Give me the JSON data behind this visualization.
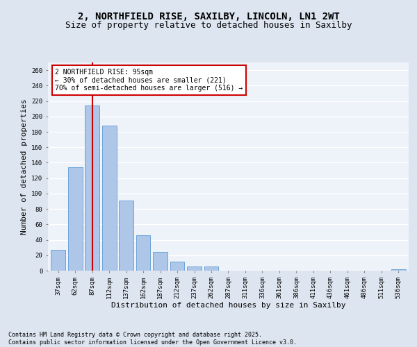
{
  "title_line1": "2, NORTHFIELD RISE, SAXILBY, LINCOLN, LN1 2WT",
  "title_line2": "Size of property relative to detached houses in Saxilby",
  "xlabel": "Distribution of detached houses by size in Saxilby",
  "ylabel": "Number of detached properties",
  "categories": [
    "37sqm",
    "62sqm",
    "87sqm",
    "112sqm",
    "137sqm",
    "162sqm",
    "187sqm",
    "212sqm",
    "237sqm",
    "262sqm",
    "287sqm",
    "311sqm",
    "336sqm",
    "361sqm",
    "386sqm",
    "411sqm",
    "436sqm",
    "461sqm",
    "486sqm",
    "511sqm",
    "536sqm"
  ],
  "values": [
    27,
    134,
    214,
    188,
    91,
    46,
    24,
    12,
    5,
    5,
    0,
    0,
    0,
    0,
    0,
    0,
    0,
    0,
    0,
    0,
    2
  ],
  "bar_color": "#aec6e8",
  "bar_edge_color": "#5b9bd5",
  "background_color": "#eef2f9",
  "grid_color": "#ffffff",
  "vline_x": 2,
  "vline_color": "#cc0000",
  "annotation_text": "2 NORTHFIELD RISE: 95sqm\n← 30% of detached houses are smaller (221)\n70% of semi-detached houses are larger (516) →",
  "annotation_box_color": "#cc0000",
  "ylim": [
    0,
    270
  ],
  "yticks": [
    0,
    20,
    40,
    60,
    80,
    100,
    120,
    140,
    160,
    180,
    200,
    220,
    240,
    260
  ],
  "footer_line1": "Contains HM Land Registry data © Crown copyright and database right 2025.",
  "footer_line2": "Contains public sector information licensed under the Open Government Licence v3.0.",
  "annotation_fontsize": 7.0,
  "title_fontsize1": 10,
  "title_fontsize2": 9,
  "xlabel_fontsize": 8,
  "ylabel_fontsize": 8,
  "tick_fontsize": 6.5,
  "footer_fontsize": 6.0
}
